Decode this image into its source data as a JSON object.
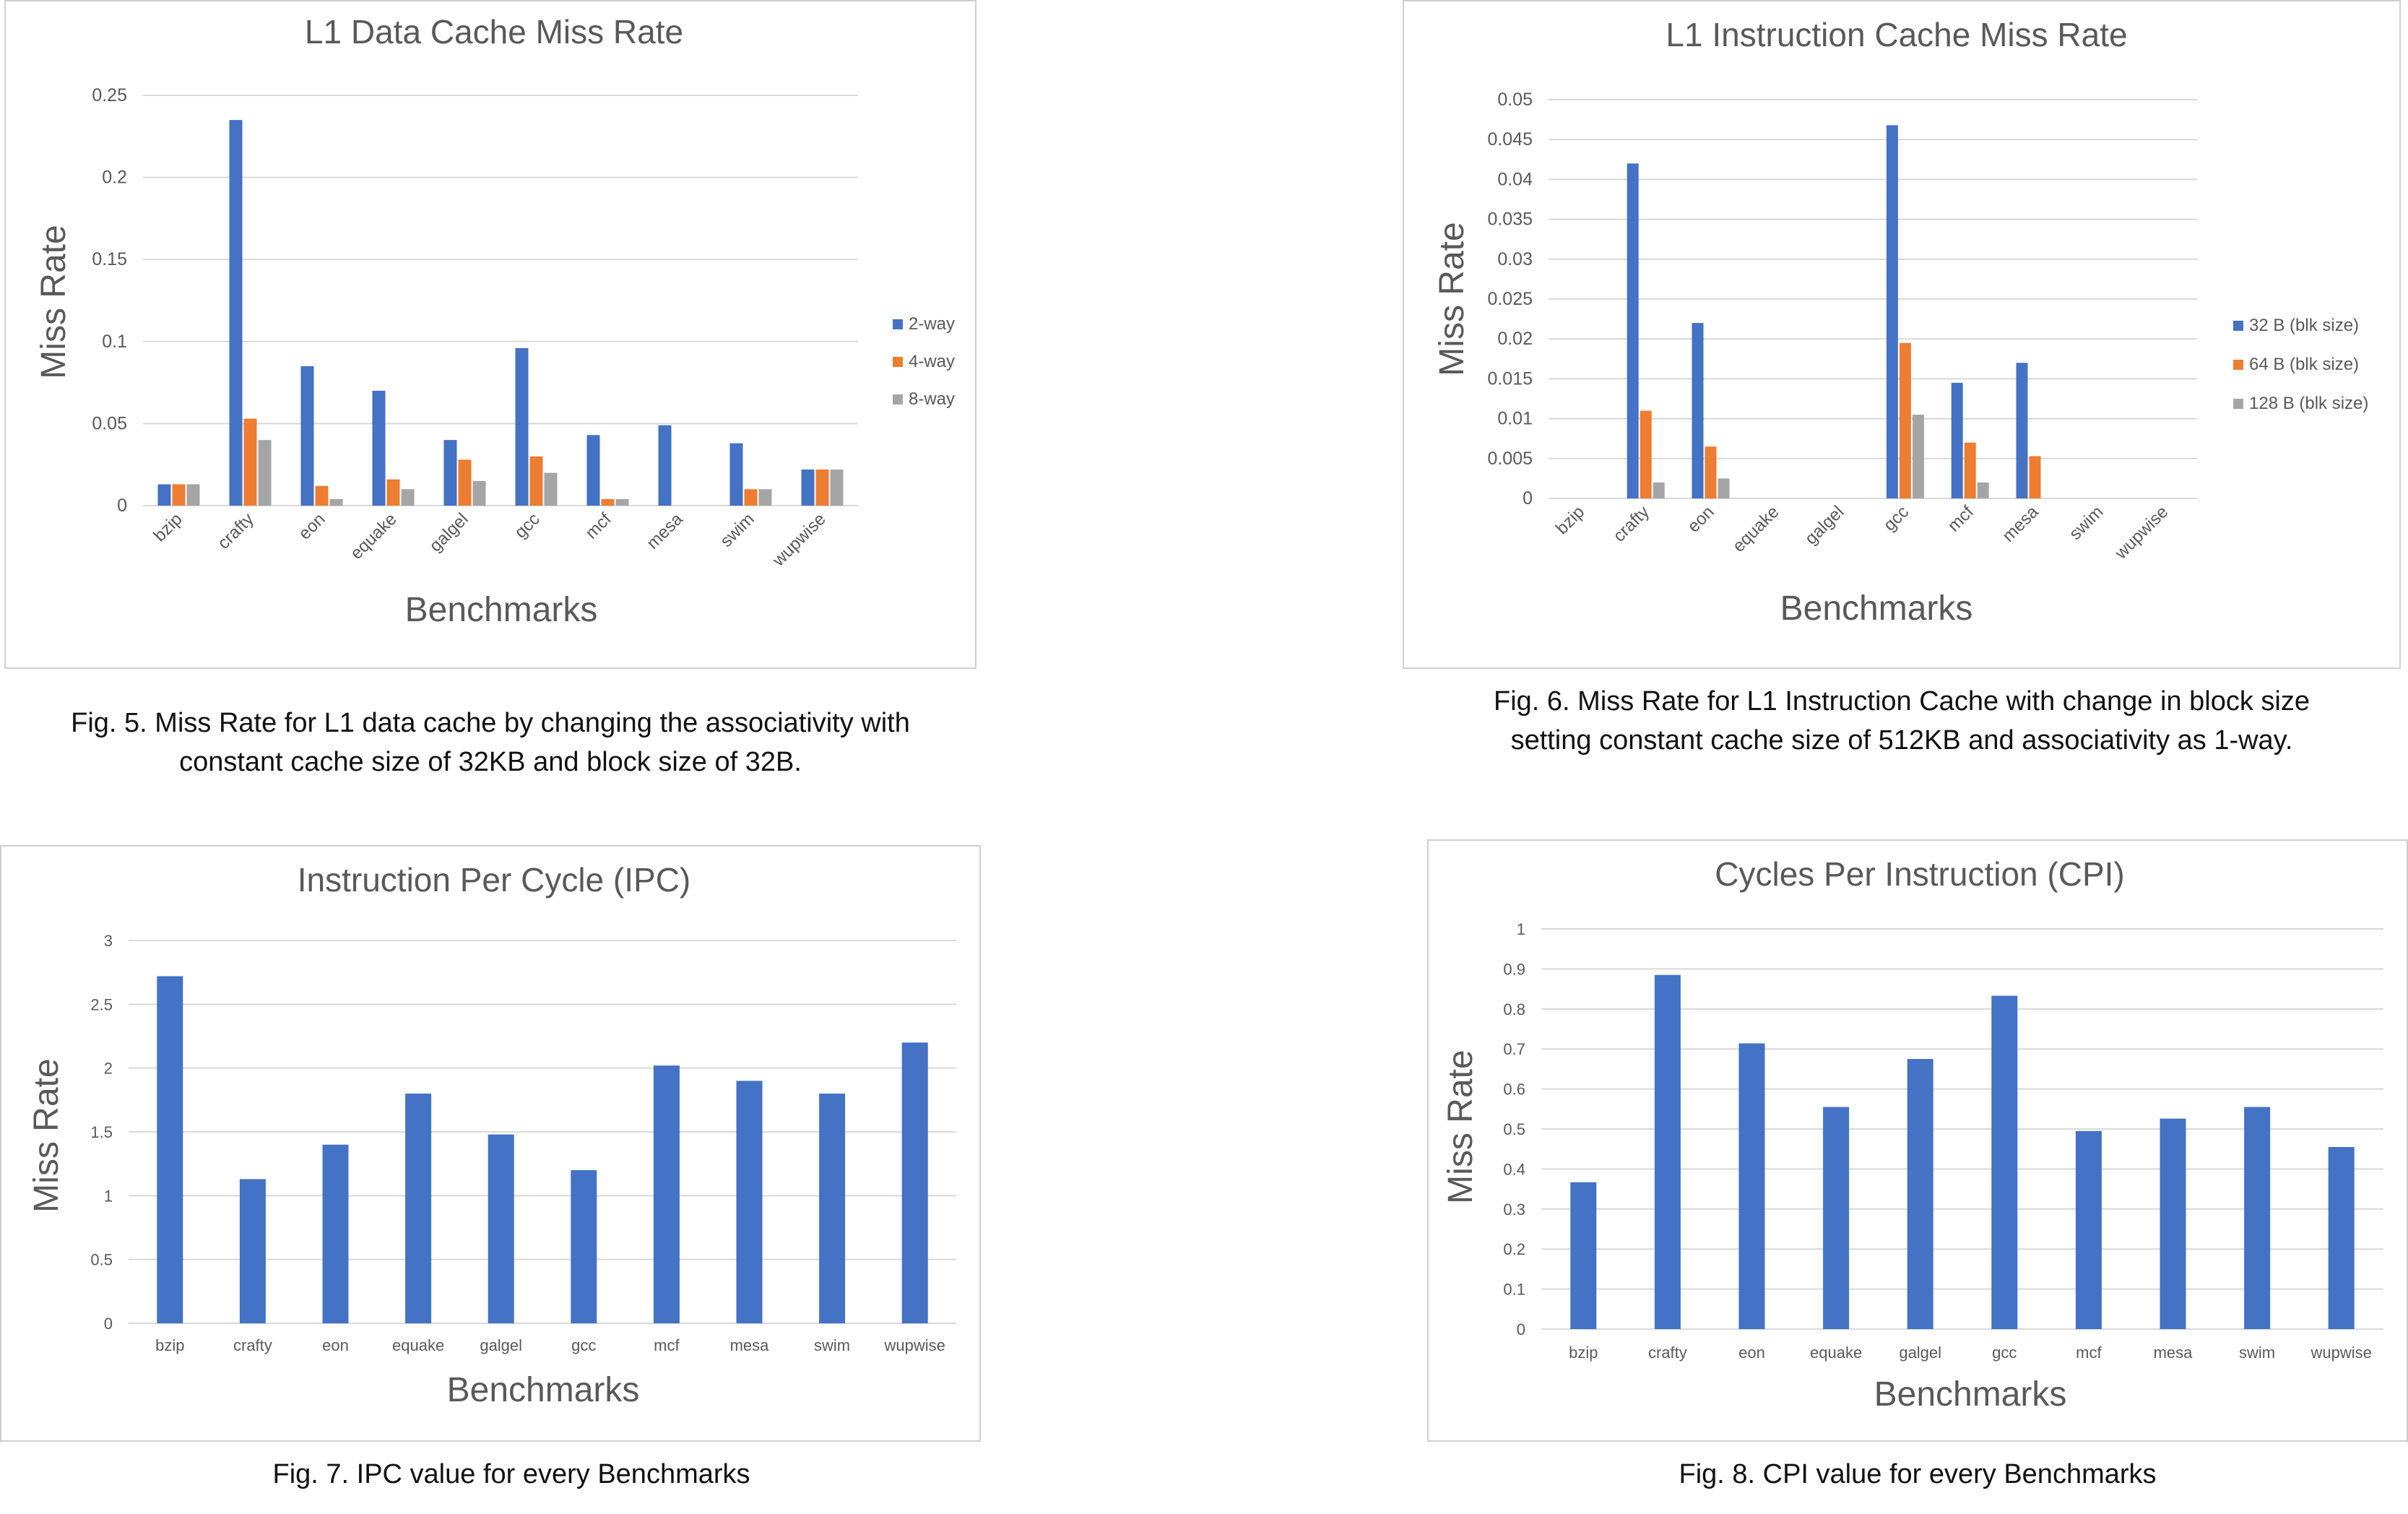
{
  "colors": {
    "blue": "#4472C4",
    "orange": "#ED7D31",
    "gray": "#A5A5A5",
    "grid": "#d9d9d9",
    "text": "#595959"
  },
  "captions": {
    "fig5_line1": "Fig. 5. Miss Rate for L1 data cache by changing the associativity with",
    "fig5_line2": "constant cache size of 32KB and block size of 32B.",
    "fig6_line1": "Fig. 6. Miss Rate for L1 Instruction Cache with change in block size",
    "fig6_line2": "setting constant cache size of 512KB and associativity as 1-way.",
    "fig7": "Fig. 7. IPC value for every Benchmarks",
    "fig8": "Fig. 8. CPI value for every Benchmarks"
  },
  "chart_data": [
    {
      "type": "bar",
      "title": "L1 Data Cache Miss Rate",
      "xlabel": "Benchmarks",
      "ylabel": "Miss Rate",
      "ylim": [
        0,
        0.25
      ],
      "yticks": [
        "0",
        "0.05",
        "0.1",
        "0.15",
        "0.2",
        "0.25"
      ],
      "grid": true,
      "legend": "right",
      "categories": [
        "bzip",
        "crafty",
        "eon",
        "equake",
        "galgel",
        "gcc",
        "mcf",
        "mesa",
        "swim",
        "wupwise"
      ],
      "series": [
        {
          "name": "2-way",
          "color": "#4472C4",
          "values": [
            0.013,
            0.235,
            0.085,
            0.07,
            0.04,
            0.096,
            0.043,
            0.049,
            0.038,
            0.022
          ]
        },
        {
          "name": "4-way",
          "color": "#ED7D31",
          "values": [
            0.013,
            0.053,
            0.012,
            0.016,
            0.028,
            0.03,
            0.004,
            0,
            0.01,
            0.022
          ]
        },
        {
          "name": "8-way",
          "color": "#A5A5A5",
          "values": [
            0.013,
            0.04,
            0.004,
            0.01,
            0.015,
            0.02,
            0.004,
            0,
            0.01,
            0.022
          ]
        }
      ]
    },
    {
      "type": "bar",
      "title": "L1 Instruction Cache Miss Rate",
      "xlabel": "Benchmarks",
      "ylabel": "Miss Rate",
      "ylim": [
        0,
        0.05
      ],
      "yticks": [
        "0",
        "0.005",
        "0.01",
        "0.015",
        "0.02",
        "0.025",
        "0.03",
        "0.035",
        "0.04",
        "0.045",
        "0.05"
      ],
      "grid": true,
      "legend": "right",
      "categories": [
        "bzip",
        "crafty",
        "eon",
        "equake",
        "galgel",
        "gcc",
        "mcf",
        "mesa",
        "swim",
        "wupwise"
      ],
      "series": [
        {
          "name": "32 B (blk size)",
          "color": "#4472C4",
          "values": [
            0,
            0.042,
            0.022,
            0,
            0,
            0.0468,
            0.0145,
            0.017,
            0,
            0
          ]
        },
        {
          "name": "64 B (blk size)",
          "color": "#ED7D31",
          "values": [
            0,
            0.011,
            0.0065,
            0,
            0,
            0.0195,
            0.007,
            0.0053,
            0,
            0
          ]
        },
        {
          "name": "128 B (blk size)",
          "color": "#A5A5A5",
          "values": [
            0,
            0.002,
            0.0025,
            0,
            0,
            0.0105,
            0.002,
            0,
            0,
            0
          ]
        }
      ]
    },
    {
      "type": "bar",
      "title": "Instruction Per Cycle (IPC)",
      "xlabel": "Benchmarks",
      "ylabel": "Miss Rate",
      "ylim": [
        0,
        3
      ],
      "yticks": [
        "0",
        "0.5",
        "1",
        "1.5",
        "2",
        "2.5",
        "3"
      ],
      "grid": true,
      "categories": [
        "bzip",
        "crafty",
        "eon",
        "equake",
        "galgel",
        "gcc",
        "mcf",
        "mesa",
        "swim",
        "wupwise"
      ],
      "series": [
        {
          "color": "#4472C4",
          "values": [
            2.72,
            1.13,
            1.4,
            1.8,
            1.48,
            1.2,
            2.02,
            1.9,
            1.8,
            2.2
          ]
        }
      ]
    },
    {
      "type": "bar",
      "title": "Cycles Per Instruction (CPI)",
      "xlabel": "Benchmarks",
      "ylabel": "Miss Rate",
      "ylim": [
        0,
        1
      ],
      "yticks": [
        "0",
        "0.1",
        "0.2",
        "0.3",
        "0.4",
        "0.5",
        "0.6",
        "0.7",
        "0.8",
        "0.9",
        "1"
      ],
      "grid": true,
      "categories": [
        "bzip",
        "crafty",
        "eon",
        "equake",
        "galgel",
        "gcc",
        "mcf",
        "mesa",
        "swim",
        "wupwise"
      ],
      "series": [
        {
          "color": "#4472C4",
          "values": [
            0.367,
            0.885,
            0.714,
            0.555,
            0.675,
            0.833,
            0.495,
            0.526,
            0.555,
            0.455
          ]
        }
      ]
    }
  ]
}
